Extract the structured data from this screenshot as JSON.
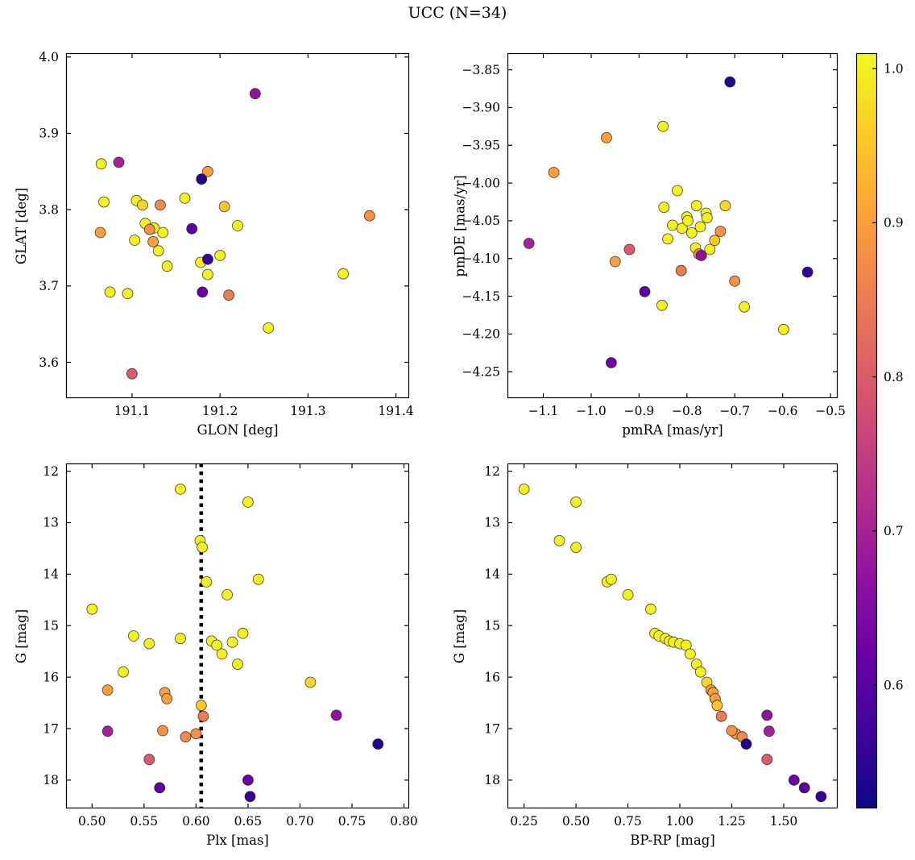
{
  "title": "UCC (N=34)",
  "n_members": 34,
  "colorbar": {
    "vmin": 0.52,
    "vmax": 1.01,
    "colormap": "plasma",
    "ticks": [
      1.0,
      0.9,
      0.8,
      0.7,
      0.6
    ],
    "tick_labels": [
      "1.0",
      "0.9",
      "0.8",
      "0.7",
      "0.6"
    ]
  },
  "chart_data": [
    {
      "type": "scatter",
      "name": "glon-glat",
      "xlabel": "GLON [deg]",
      "ylabel": "GLAT [deg]",
      "xlim": [
        191.025,
        191.415
      ],
      "ylim": [
        3.553,
        4.005
      ],
      "xticks": [
        191.1,
        191.2,
        191.3,
        191.4
      ],
      "xtick_labels": [
        "191.1",
        "191.2",
        "191.3",
        "191.4"
      ],
      "yticks": [
        3.6,
        3.7,
        3.8,
        3.9,
        4.0
      ],
      "ytick_labels": [
        "3.6",
        "3.7",
        "3.8",
        "3.9",
        "4.0"
      ],
      "xkey": "glon",
      "ykey": "glat"
    },
    {
      "type": "scatter",
      "name": "pm",
      "xlabel": "pmRA [mas/yr]",
      "ylabel": "pmDE [mas/yr]",
      "xlim": [
        -1.175,
        -0.485
      ],
      "ylim": [
        -4.285,
        -3.828
      ],
      "xticks": [
        -1.1,
        -1.0,
        -0.9,
        -0.8,
        -0.7,
        -0.6,
        -0.5
      ],
      "xtick_labels": [
        "−1.1",
        "−1.0",
        "−0.9",
        "−0.8",
        "−0.7",
        "−0.6",
        "−0.5"
      ],
      "yticks": [
        -3.85,
        -3.9,
        -3.95,
        -4.0,
        -4.05,
        -4.1,
        -4.15,
        -4.2,
        -4.25
      ],
      "ytick_labels": [
        "−3.85",
        "−3.90",
        "−3.95",
        "−4.00",
        "−4.05",
        "−4.10",
        "−4.15",
        "−4.20",
        "−4.25"
      ],
      "xkey": "pmra",
      "ykey": "pmde"
    },
    {
      "type": "scatter",
      "name": "plx-g",
      "xlabel": "Plx [mas]",
      "ylabel": "G [mag]",
      "xlim": [
        0.475,
        0.805
      ],
      "ylim": [
        18.55,
        11.85
      ],
      "xticks": [
        0.5,
        0.55,
        0.6,
        0.65,
        0.7,
        0.75,
        0.8
      ],
      "xtick_labels": [
        "0.50",
        "0.55",
        "0.60",
        "0.65",
        "0.70",
        "0.75",
        "0.80"
      ],
      "yticks": [
        12,
        13,
        14,
        15,
        16,
        17,
        18
      ],
      "ytick_labels": [
        "12",
        "13",
        "14",
        "15",
        "16",
        "17",
        "18"
      ],
      "vline": 0.605,
      "xkey": "plx",
      "ykey": "g"
    },
    {
      "type": "scatter",
      "name": "cmd",
      "xlabel": "BP-RP [mag]",
      "ylabel": "G [mag]",
      "xlim": [
        0.17,
        1.76
      ],
      "ylim": [
        18.55,
        11.85
      ],
      "xticks": [
        0.25,
        0.5,
        0.75,
        1.0,
        1.25,
        1.5
      ],
      "xtick_labels": [
        "0.25",
        "0.50",
        "0.75",
        "1.00",
        "1.25",
        "1.50"
      ],
      "yticks": [
        12,
        13,
        14,
        15,
        16,
        17,
        18
      ],
      "ytick_labels": [
        "12",
        "13",
        "14",
        "15",
        "16",
        "17",
        "18"
      ],
      "xkey": "bprp",
      "ykey": "g"
    }
  ],
  "stars": [
    {
      "glon": 191.065,
      "glat": 3.86,
      "pmra": -0.85,
      "pmde": -3.925,
      "plx": 0.585,
      "g": 12.35,
      "bprp": 0.25,
      "p": 1.0
    },
    {
      "glon": 191.255,
      "glat": 3.645,
      "pmra": -0.82,
      "pmde": -4.01,
      "plx": 0.65,
      "g": 12.6,
      "bprp": 0.5,
      "p": 1.0
    },
    {
      "glon": 191.105,
      "glat": 3.812,
      "pmra": -0.8,
      "pmde": -4.045,
      "plx": 0.604,
      "g": 13.35,
      "bprp": 0.42,
      "p": 1.0
    },
    {
      "glon": 191.16,
      "glat": 3.815,
      "pmra": -0.78,
      "pmde": -4.03,
      "plx": 0.606,
      "g": 13.48,
      "bprp": 0.5,
      "p": 1.0
    },
    {
      "glon": 191.135,
      "glat": 3.77,
      "pmra": -0.76,
      "pmde": -4.04,
      "plx": 0.61,
      "g": 14.15,
      "bprp": 0.65,
      "p": 1.0
    },
    {
      "glon": 191.34,
      "glat": 3.716,
      "pmra": -0.83,
      "pmde": -4.056,
      "plx": 0.66,
      "g": 14.1,
      "bprp": 0.67,
      "p": 1.0
    },
    {
      "glon": 191.075,
      "glat": 3.692,
      "pmra": -0.81,
      "pmde": -4.06,
      "plx": 0.63,
      "g": 14.4,
      "bprp": 0.75,
      "p": 1.0
    },
    {
      "glon": 191.068,
      "glat": 3.81,
      "pmra": -0.79,
      "pmde": -4.066,
      "plx": 0.5,
      "g": 14.68,
      "bprp": 0.86,
      "p": 1.0
    },
    {
      "glon": 191.22,
      "glat": 3.779,
      "pmra": -0.772,
      "pmde": -4.058,
      "plx": 0.645,
      "g": 15.15,
      "bprp": 0.88,
      "p": 1.0
    },
    {
      "glon": 191.115,
      "glat": 3.782,
      "pmra": -0.84,
      "pmde": -4.074,
      "plx": 0.54,
      "g": 15.2,
      "bprp": 0.9,
      "p": 1.0
    },
    {
      "glon": 191.125,
      "glat": 3.776,
      "pmra": -0.782,
      "pmde": -4.086,
      "plx": 0.585,
      "g": 15.25,
      "bprp": 0.93,
      "p": 1.0
    },
    {
      "glon": 191.2,
      "glat": 3.74,
      "pmra": -0.752,
      "pmde": -4.088,
      "plx": 0.615,
      "g": 15.3,
      "bprp": 0.95,
      "p": 1.0
    },
    {
      "glon": 191.13,
      "glat": 3.746,
      "pmra": -0.848,
      "pmde": -4.032,
      "plx": 0.635,
      "g": 15.32,
      "bprp": 0.97,
      "p": 1.0
    },
    {
      "glon": 191.103,
      "glat": 3.76,
      "pmra": -0.852,
      "pmde": -4.162,
      "plx": 0.555,
      "g": 15.35,
      "bprp": 1.0,
      "p": 1.0
    },
    {
      "glon": 191.186,
      "glat": 3.715,
      "pmra": -0.798,
      "pmde": -4.05,
      "plx": 0.62,
      "g": 15.38,
      "bprp": 1.03,
      "p": 1.0
    },
    {
      "glon": 191.14,
      "glat": 3.726,
      "pmra": -0.68,
      "pmde": -4.164,
      "plx": 0.625,
      "g": 15.55,
      "bprp": 1.05,
      "p": 1.0
    },
    {
      "glon": 191.178,
      "glat": 3.731,
      "pmra": -0.758,
      "pmde": -4.046,
      "plx": 0.64,
      "g": 15.75,
      "bprp": 1.08,
      "p": 1.0
    },
    {
      "glon": 191.095,
      "glat": 3.69,
      "pmra": -0.598,
      "pmde": -4.194,
      "plx": 0.53,
      "g": 15.9,
      "bprp": 1.1,
      "p": 1.0
    },
    {
      "glon": 191.112,
      "glat": 3.806,
      "pmra": -0.72,
      "pmde": -4.03,
      "plx": 0.71,
      "g": 16.1,
      "bprp": 1.13,
      "p": 0.97
    },
    {
      "glon": 191.064,
      "glat": 3.77,
      "pmra": -1.078,
      "pmde": -3.986,
      "plx": 0.515,
      "g": 16.25,
      "bprp": 1.15,
      "p": 0.9
    },
    {
      "glon": 191.124,
      "glat": 3.758,
      "pmra": -0.968,
      "pmde": -3.94,
      "plx": 0.57,
      "g": 16.3,
      "bprp": 1.16,
      "p": 0.9
    },
    {
      "glon": 191.186,
      "glat": 3.85,
      "pmra": -0.95,
      "pmde": -4.104,
      "plx": 0.572,
      "g": 16.42,
      "bprp": 1.17,
      "p": 0.9
    },
    {
      "glon": 191.205,
      "glat": 3.804,
      "pmra": -0.742,
      "pmde": -4.076,
      "plx": 0.605,
      "g": 16.55,
      "bprp": 1.18,
      "p": 0.95
    },
    {
      "glon": 191.21,
      "glat": 3.688,
      "pmra": -0.812,
      "pmde": -4.116,
      "plx": 0.607,
      "g": 16.76,
      "bprp": 1.2,
      "p": 0.85
    },
    {
      "glon": 191.37,
      "glat": 3.792,
      "pmra": -0.7,
      "pmde": -4.13,
      "plx": 0.6,
      "g": 17.1,
      "bprp": 1.27,
      "p": 0.88
    },
    {
      "glon": 191.1,
      "glat": 3.585,
      "pmra": -0.92,
      "pmde": -4.088,
      "plx": 0.555,
      "g": 17.6,
      "bprp": 1.42,
      "p": 0.8
    },
    {
      "glon": 191.132,
      "glat": 3.806,
      "pmra": -0.775,
      "pmde": -4.094,
      "plx": 0.59,
      "g": 17.16,
      "bprp": 1.3,
      "p": 0.87
    },
    {
      "glon": 191.12,
      "glat": 3.774,
      "pmra": -0.73,
      "pmde": -4.064,
      "plx": 0.568,
      "g": 17.04,
      "bprp": 1.25,
      "p": 0.88
    },
    {
      "glon": 191.085,
      "glat": 3.862,
      "pmra": -1.13,
      "pmde": -4.08,
      "plx": 0.515,
      "g": 17.05,
      "bprp": 1.43,
      "p": 0.7
    },
    {
      "glon": 191.24,
      "glat": 3.952,
      "pmra": -0.77,
      "pmde": -4.096,
      "plx": 0.735,
      "g": 16.74,
      "bprp": 1.42,
      "p": 0.67
    },
    {
      "glon": 191.168,
      "glat": 3.775,
      "pmra": -0.888,
      "pmde": -4.144,
      "plx": 0.565,
      "g": 18.15,
      "bprp": 1.6,
      "p": 0.6
    },
    {
      "glon": 191.18,
      "glat": 3.692,
      "pmra": -0.958,
      "pmde": -4.238,
      "plx": 0.65,
      "g": 18.0,
      "bprp": 1.55,
      "p": 0.62
    },
    {
      "glon": 191.179,
      "glat": 3.84,
      "pmra": -0.71,
      "pmde": -3.866,
      "plx": 0.775,
      "g": 17.3,
      "bprp": 1.32,
      "p": 0.54
    },
    {
      "glon": 191.186,
      "glat": 3.735,
      "pmra": -0.548,
      "pmde": -4.118,
      "plx": 0.652,
      "g": 18.32,
      "bprp": 1.68,
      "p": 0.56
    }
  ]
}
